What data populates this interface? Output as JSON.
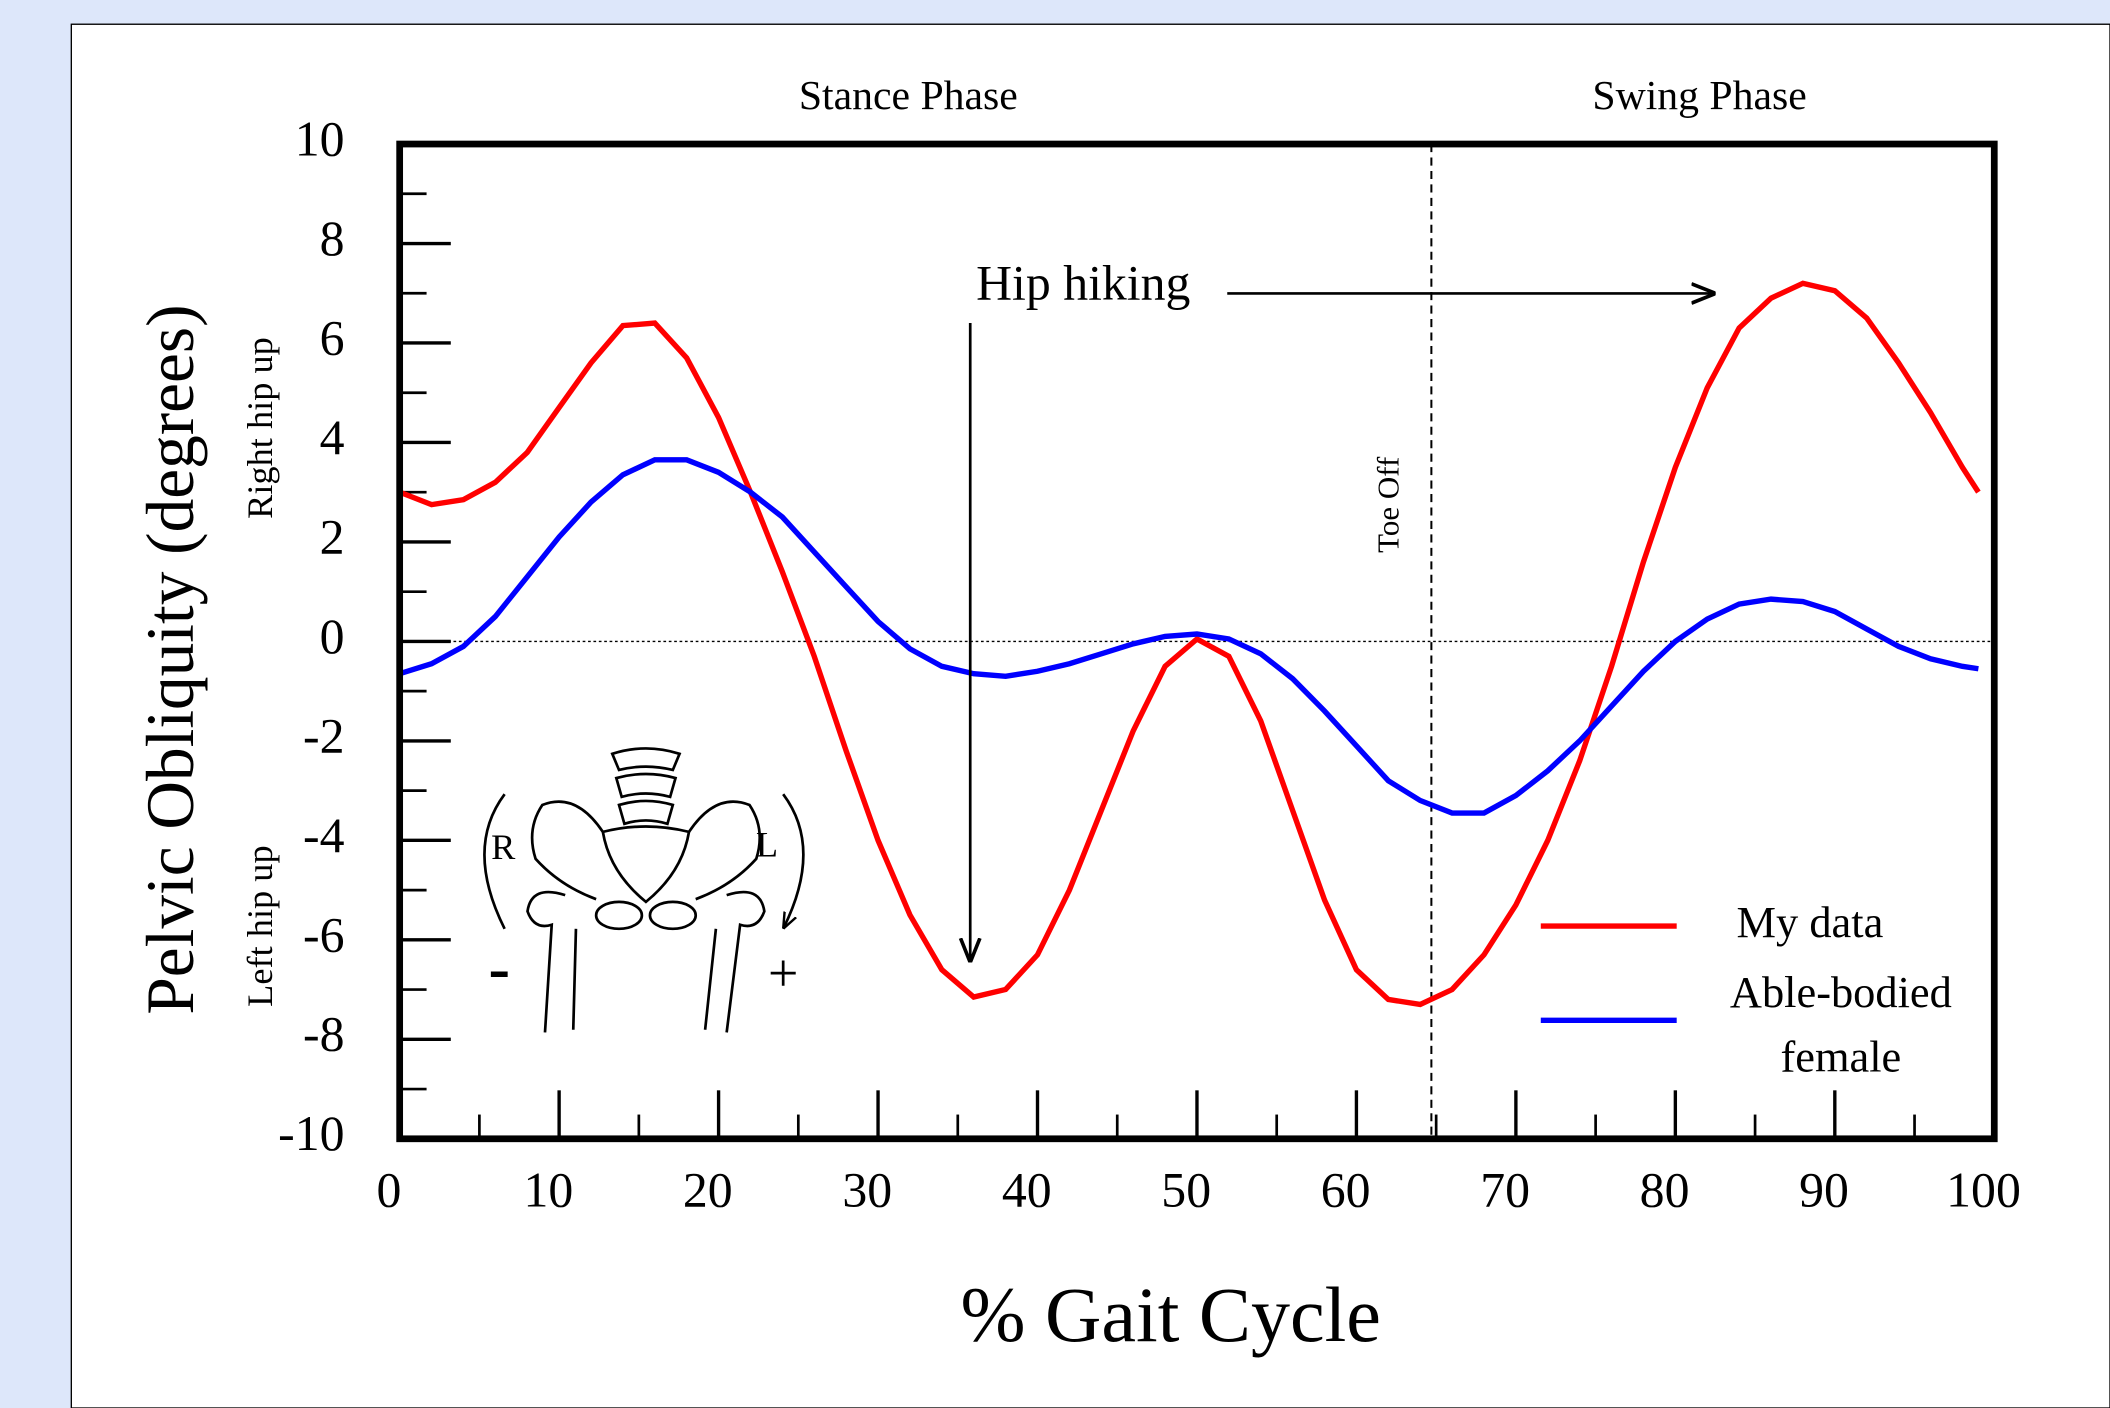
{
  "chart_data": {
    "type": "line",
    "x_label": "% Gait Cycle",
    "y_label": "Pelvic Obliquity (degrees)",
    "y_upper_note": "Right hip up",
    "y_lower_note": "Left hip up",
    "phase_labels": [
      "Stance Phase",
      "Swing Phase"
    ],
    "annotation": "Hip hiking",
    "toe_off_label": "Toe Off",
    "toe_off": 64.7,
    "figure_labels": [
      "R",
      "L",
      "-",
      "+"
    ],
    "x": [
      0,
      2,
      4,
      6,
      8,
      10,
      12,
      14,
      16,
      18,
      20,
      22,
      24,
      26,
      28,
      30,
      32,
      34,
      36,
      38,
      40,
      42,
      44,
      46,
      48,
      50,
      52,
      54,
      56,
      58,
      60,
      62,
      64,
      66,
      68,
      70,
      72,
      74,
      76,
      78,
      80,
      82,
      84,
      86,
      88,
      90,
      92,
      94,
      96,
      98,
      99
    ],
    "series": [
      {
        "name": "My data",
        "color": "#ff0000",
        "values": [
          3.0,
          2.75,
          2.85,
          3.2,
          3.8,
          4.7,
          5.6,
          6.35,
          6.4,
          5.7,
          4.5,
          3.0,
          1.4,
          -0.3,
          -2.2,
          -4.0,
          -5.5,
          -6.6,
          -7.15,
          -7.0,
          -6.3,
          -5.0,
          -3.4,
          -1.8,
          -0.5,
          0.05,
          -0.3,
          -1.6,
          -3.4,
          -5.2,
          -6.6,
          -7.2,
          -7.3,
          -7.0,
          -6.3,
          -5.3,
          -4.0,
          -2.4,
          -0.5,
          1.6,
          3.5,
          5.1,
          6.3,
          6.9,
          7.2,
          7.05,
          6.5,
          5.6,
          4.6,
          3.5,
          3.0
        ]
      },
      {
        "name": "Able-bodied female",
        "color": "#0000ff",
        "values": [
          -0.65,
          -0.45,
          -0.1,
          0.5,
          1.3,
          2.1,
          2.8,
          3.35,
          3.65,
          3.65,
          3.4,
          3.0,
          2.5,
          1.8,
          1.1,
          0.4,
          -0.15,
          -0.5,
          -0.65,
          -0.7,
          -0.6,
          -0.45,
          -0.25,
          -0.05,
          0.1,
          0.15,
          0.05,
          -0.25,
          -0.75,
          -1.4,
          -2.1,
          -2.8,
          -3.2,
          -3.45,
          -3.45,
          -3.1,
          -2.6,
          -2.0,
          -1.3,
          -0.6,
          0.0,
          0.45,
          0.75,
          0.85,
          0.8,
          0.6,
          0.25,
          -0.1,
          -0.35,
          -0.5,
          -0.55
        ]
      }
    ],
    "xlim": [
      0,
      100
    ],
    "xticks": [
      0,
      10,
      20,
      30,
      40,
      50,
      60,
      70,
      80,
      90,
      100
    ],
    "ylim": [
      -10,
      10
    ],
    "yticks": [
      -10,
      -8,
      -6,
      -4,
      -2,
      0,
      2,
      4,
      6,
      8,
      10
    ],
    "zero_line": true
  }
}
